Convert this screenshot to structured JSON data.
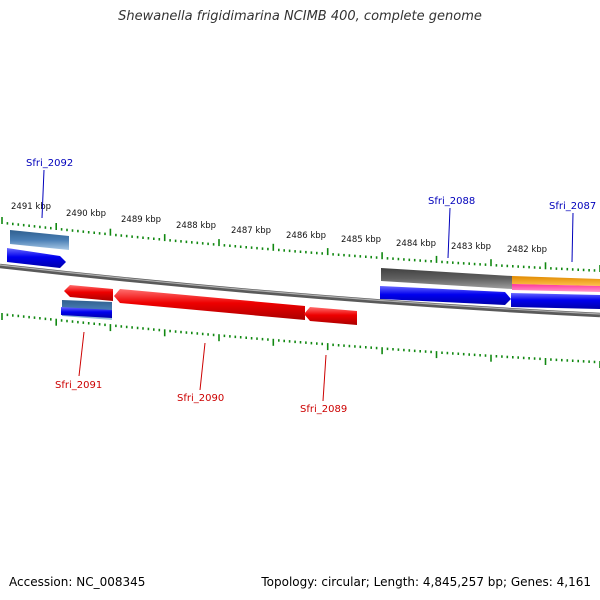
{
  "title": "Shewanella frigidimarina NCIMB 400, complete genome",
  "footer": {
    "accession": "Accession: NC_008345",
    "summary": "Topology: circular; Length: 4,845,257 bp; Genes: 4,161"
  },
  "ticks": [
    "2491 kbp",
    "2490 kbp",
    "2489 kbp",
    "2488 kbp",
    "2487 kbp",
    "2486 kbp",
    "2485 kbp",
    "2484 kbp",
    "2483 kbp",
    "2482 kbp"
  ],
  "genes": {
    "top": [
      {
        "label": "Sfri_2092",
        "color": "#0000bb"
      },
      {
        "label": "Sfri_2088",
        "color": "#0000bb"
      },
      {
        "label": "Sfri_2087",
        "color": "#0000bb"
      }
    ],
    "bottom": [
      {
        "label": "Sfri_2091",
        "color": "#cc0000"
      },
      {
        "label": "Sfri_2090",
        "color": "#cc0000"
      },
      {
        "label": "Sfri_2089",
        "color": "#cc0000"
      }
    ]
  },
  "colors": {
    "forward_cds": "#0000ee",
    "reverse_cds": "#ee0000",
    "backbone": "#808080",
    "tick": "#118811",
    "steelblue": "#4a7fb5",
    "dark_gray_feature": "#606060",
    "orange_feature": "#f39c12",
    "pink_feature": "#ff3399"
  }
}
